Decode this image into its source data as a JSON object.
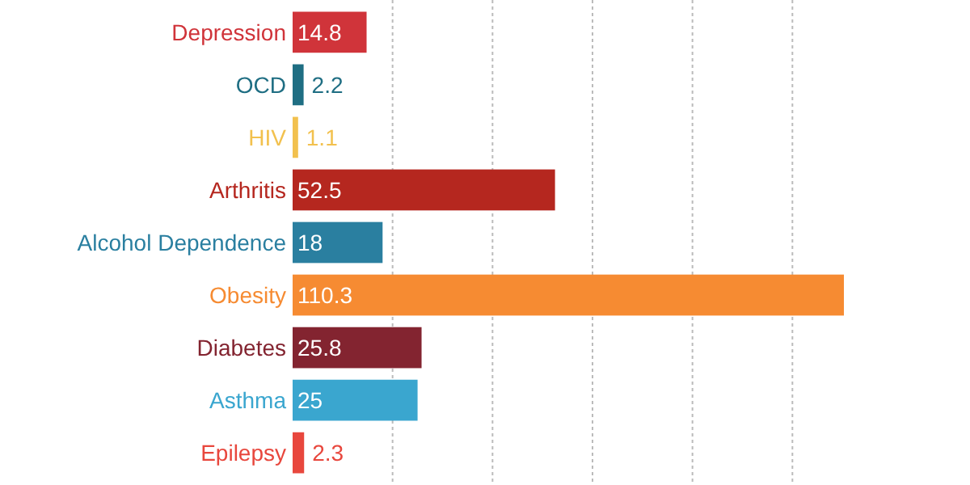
{
  "chart_data": {
    "type": "bar",
    "orientation": "horizontal",
    "categories": [
      "Depression",
      "OCD",
      "HIV",
      "Arthritis",
      "Alcohol Dependence",
      "Obesity",
      "Diabetes",
      "Asthma",
      "Epilepsy"
    ],
    "values": [
      14.8,
      2.2,
      1.1,
      52.5,
      18,
      110.3,
      25.8,
      25,
      2.3
    ],
    "colors": [
      "#d0343a",
      "#1f6e83",
      "#f2c14e",
      "#b5271f",
      "#2a7fa0",
      "#f68b32",
      "#832430",
      "#3aa6cf",
      "#e8473d"
    ],
    "xticks": [
      {
        "value": 20,
        "label": null
      },
      {
        "value": 40,
        "label": null
      },
      {
        "value": 60,
        "label": null
      },
      {
        "value": 80,
        "label": null
      },
      {
        "value": 100,
        "label": null
      }
    ],
    "grid": "x",
    "data_labels": true,
    "tick_labels": "y"
  }
}
